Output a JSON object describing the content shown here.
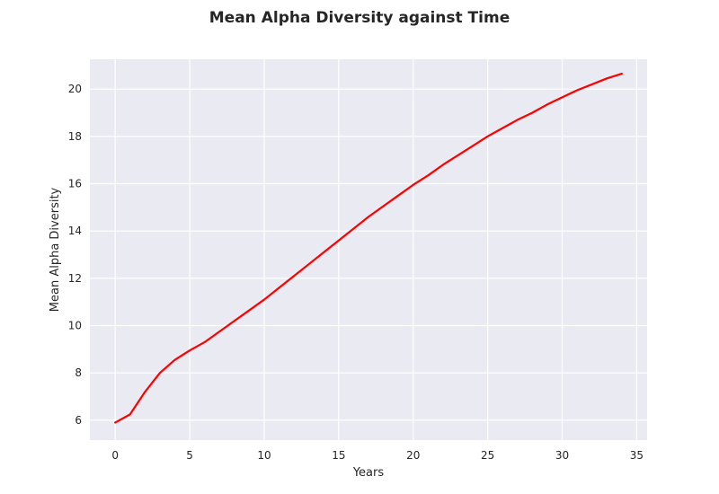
{
  "chart_data": {
    "type": "line",
    "title": "Mean Alpha Diversity against Time",
    "xlabel": "Years",
    "ylabel": "Mean Alpha Diversity",
    "xlim": [
      -1.7,
      35.7
    ],
    "ylim": [
      5.16,
      21.26
    ],
    "xticks": [
      0,
      5,
      10,
      15,
      20,
      25,
      30,
      35
    ],
    "yticks": [
      6,
      8,
      10,
      12,
      14,
      16,
      18,
      20
    ],
    "grid": true,
    "background_color": "#eaeaf2",
    "line_color": "#ff0000",
    "series": [
      {
        "x": [
          0,
          1,
          2,
          3,
          4,
          5,
          6,
          7,
          8,
          9,
          10,
          11,
          12,
          13,
          14,
          15,
          16,
          17,
          18,
          19,
          20,
          21,
          22,
          23,
          24,
          25,
          26,
          27,
          28,
          29,
          30,
          31,
          32,
          33,
          34
        ],
        "values": [
          5.9,
          6.25,
          7.2,
          8.0,
          8.55,
          8.95,
          9.3,
          9.75,
          10.2,
          10.65,
          11.1,
          11.6,
          12.1,
          12.6,
          13.1,
          13.6,
          14.1,
          14.6,
          15.05,
          15.5,
          15.95,
          16.35,
          16.8,
          17.2,
          17.6,
          18.0,
          18.35,
          18.7,
          19.0,
          19.35,
          19.65,
          19.95,
          20.2,
          20.45,
          20.65
        ]
      }
    ]
  }
}
